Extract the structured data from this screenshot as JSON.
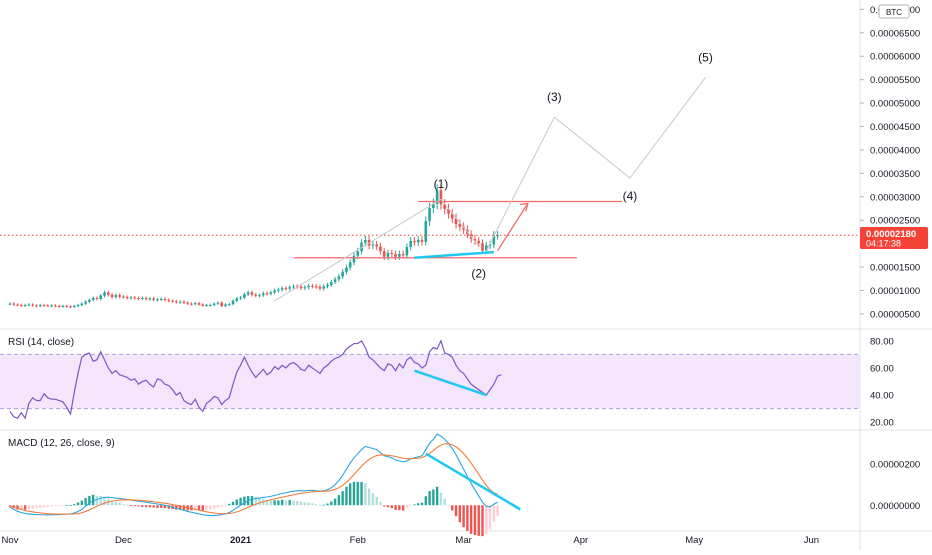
{
  "colors": {
    "up": "#26a69a",
    "down": "#ef5350",
    "rsi_line": "#7e57c2",
    "rsi_band": "#f3e5fb",
    "macd_line": "#2aa6e0",
    "signal_line": "#f57c3a",
    "divergence": "#1ec8f0",
    "price_tag": "#f44336",
    "resistance": "#f06a6a",
    "wave": "#c8c8c8"
  },
  "chart_data": [
    {
      "type": "candlestick",
      "name": "main",
      "currency_badge": "BTC",
      "y_ticks": [
        "0.00007000",
        "0.00006500",
        "0.00006000",
        "0.00005500",
        "0.00005000",
        "0.00004500",
        "0.00004000",
        "0.00003500",
        "0.00003000",
        "0.00002500",
        "0.00002000",
        "0.00001500",
        "0.00001000",
        "0.00000500"
      ],
      "y_tick_values": [
        70,
        65,
        60,
        55,
        50,
        45,
        40,
        35,
        30,
        25,
        20,
        15,
        10,
        5
      ],
      "ylim": [
        2,
        72
      ],
      "unit_scale": "1e-6",
      "last_price": "0.00002180",
      "last_price_value": 21.8,
      "countdown": "04:17:38",
      "x_ticks": [
        "Nov",
        "Dec",
        "2021",
        "Feb",
        "Mar",
        "Apr",
        "May",
        "Jun"
      ],
      "x_tick_days": [
        0,
        30,
        61,
        92,
        120,
        151,
        181,
        212
      ],
      "close": [
        7.2,
        7.0,
        6.9,
        6.8,
        6.9,
        7.0,
        6.8,
        6.7,
        6.9,
        6.8,
        6.7,
        6.8,
        6.7,
        6.6,
        6.7,
        6.6,
        6.5,
        6.7,
        6.9,
        7.2,
        7.6,
        8.0,
        8.4,
        8.2,
        8.9,
        9.6,
        9.1,
        8.6,
        9.0,
        8.7,
        8.6,
        8.4,
        8.5,
        8.4,
        8.3,
        8.4,
        8.2,
        8.3,
        8.0,
        8.1,
        8.2,
        8.0,
        7.8,
        7.7,
        7.5,
        7.6,
        7.4,
        7.2,
        7.1,
        7.3,
        7.0,
        6.8,
        6.9,
        6.9,
        7.2,
        7.4,
        6.7,
        7.0,
        7.1,
        7.8,
        8.3,
        8.5,
        9.2,
        9.6,
        9.1,
        8.9,
        9.0,
        9.4,
        9.3,
        9.6,
        10.0,
        10.2,
        10.5,
        10.4,
        10.7,
        10.9,
        10.8,
        10.5,
        10.7,
        11.0,
        10.9,
        10.8,
        10.4,
        10.9,
        11.2,
        11.8,
        12.4,
        13.0,
        14.0,
        14.9,
        16.0,
        17.4,
        18.4,
        20.2,
        20.8,
        19.6,
        19.8,
        19.4,
        18.4,
        17.2,
        18.0,
        17.8,
        17.2,
        17.8,
        17.5,
        19.3,
        20.6,
        20.3,
        20.8,
        20.4,
        24.8,
        27.6,
        28.5,
        31.4,
        28.4,
        27.4,
        26.4,
        25.4,
        24.2,
        23.6,
        23.0,
        22.0,
        21.0,
        20.6,
        20.1,
        18.5,
        19.6,
        19.8,
        21.8,
        21.8
      ],
      "annotations": {
        "wave_labels": [
          "(1)",
          "(2)",
          "(3)",
          "(4)",
          "(5)"
        ],
        "wave_points": [
          [
            114,
            28.5
          ],
          [
            124,
            17.0
          ],
          [
            144,
            47.0
          ],
          [
            164,
            34.0
          ],
          [
            184,
            55.5
          ]
        ],
        "resistance_upper": 29.0,
        "support_lower": 17.0
      }
    },
    {
      "type": "line",
      "name": "rsi",
      "title": "RSI (14, close)",
      "y_ticks": [
        "80.00",
        "60.00",
        "40.00",
        "20.00"
      ],
      "y_tick_values": [
        80,
        60,
        40,
        20
      ],
      "ylim": [
        15,
        88
      ],
      "band": [
        30,
        70
      ],
      "values": [
        28,
        24,
        23,
        27,
        23,
        34,
        38,
        36,
        36,
        41,
        38,
        37,
        37,
        36,
        35,
        31,
        26,
        42,
        56,
        68,
        70,
        71,
        65,
        66,
        72,
        66,
        60,
        56,
        58,
        55,
        54,
        53,
        51,
        52,
        48,
        50,
        51,
        48,
        46,
        52,
        51,
        48,
        47,
        44,
        40,
        42,
        36,
        34,
        33,
        37,
        31,
        28,
        34,
        36,
        39,
        38,
        33,
        36,
        38,
        48,
        57,
        62,
        68,
        62,
        57,
        53,
        56,
        59,
        55,
        57,
        61,
        59,
        62,
        60,
        63,
        64,
        62,
        59,
        58,
        62,
        60,
        58,
        56,
        60,
        62,
        65,
        67,
        68,
        70,
        74,
        76,
        78,
        78,
        80,
        75,
        68,
        66,
        63,
        60,
        58,
        63,
        62,
        58,
        63,
        60,
        66,
        68,
        64,
        63,
        60,
        62,
        72,
        75,
        74,
        80,
        71,
        70,
        68,
        62,
        58,
        56,
        52,
        48,
        46,
        44,
        42,
        40,
        44,
        48,
        54,
        55
      ]
    },
    {
      "type": "line",
      "name": "macd",
      "title": "MACD (12, 26, close, 9)",
      "y_ticks": [
        "0.00000200",
        "0.00000000"
      ],
      "y_tick_values": [
        2.0,
        0.0
      ],
      "ylim": [
        -1.2,
        3.6
      ],
      "macd": [
        -0.1,
        -0.2,
        -0.3,
        -0.35,
        -0.4,
        -0.42,
        -0.44,
        -0.45,
        -0.46,
        -0.46,
        -0.47,
        -0.46,
        -0.46,
        -0.45,
        -0.44,
        -0.43,
        -0.42,
        -0.38,
        -0.3,
        -0.2,
        -0.05,
        0.1,
        0.22,
        0.28,
        0.35,
        0.38,
        0.39,
        0.37,
        0.35,
        0.33,
        0.3,
        0.28,
        0.25,
        0.22,
        0.2,
        0.17,
        0.15,
        0.12,
        0.09,
        0.06,
        0.03,
        0.0,
        -0.05,
        -0.1,
        -0.15,
        -0.2,
        -0.25,
        -0.3,
        -0.34,
        -0.38,
        -0.42,
        -0.46,
        -0.48,
        -0.5,
        -0.5,
        -0.48,
        -0.45,
        -0.42,
        -0.35,
        -0.25,
        -0.12,
        0.0,
        0.12,
        0.22,
        0.3,
        0.33,
        0.35,
        0.38,
        0.4,
        0.43,
        0.48,
        0.52,
        0.58,
        0.6,
        0.65,
        0.68,
        0.7,
        0.7,
        0.7,
        0.72,
        0.72,
        0.7,
        0.68,
        0.7,
        0.75,
        0.85,
        1.0,
        1.2,
        1.45,
        1.75,
        2.05,
        2.3,
        2.5,
        2.7,
        2.85,
        2.8,
        2.75,
        2.7,
        2.55,
        2.4,
        2.35,
        2.3,
        2.2,
        2.15,
        2.1,
        2.15,
        2.25,
        2.3,
        2.35,
        2.4,
        2.7,
        3.0,
        3.2,
        3.45,
        3.35,
        3.2,
        3.0,
        2.75,
        2.45,
        2.1,
        1.75,
        1.4,
        1.05,
        0.75,
        0.45,
        0.15,
        -0.05,
        -0.08,
        0.05,
        0.15
      ],
      "signal": [
        -0.05,
        -0.1,
        -0.15,
        -0.2,
        -0.25,
        -0.29,
        -0.32,
        -0.35,
        -0.37,
        -0.39,
        -0.41,
        -0.42,
        -0.43,
        -0.43,
        -0.43,
        -0.43,
        -0.43,
        -0.42,
        -0.4,
        -0.36,
        -0.3,
        -0.22,
        -0.14,
        -0.05,
        0.03,
        0.1,
        0.16,
        0.2,
        0.23,
        0.25,
        0.26,
        0.26,
        0.26,
        0.25,
        0.24,
        0.23,
        0.21,
        0.19,
        0.17,
        0.15,
        0.12,
        0.1,
        0.07,
        0.03,
        0.0,
        -0.04,
        -0.08,
        -0.12,
        -0.16,
        -0.2,
        -0.24,
        -0.28,
        -0.32,
        -0.35,
        -0.38,
        -0.4,
        -0.41,
        -0.41,
        -0.4,
        -0.37,
        -0.32,
        -0.26,
        -0.18,
        -0.1,
        -0.02,
        0.05,
        0.11,
        0.17,
        0.22,
        0.26,
        0.31,
        0.35,
        0.39,
        0.43,
        0.47,
        0.51,
        0.55,
        0.58,
        0.6,
        0.63,
        0.65,
        0.66,
        0.67,
        0.68,
        0.69,
        0.72,
        0.77,
        0.85,
        0.96,
        1.11,
        1.29,
        1.49,
        1.69,
        1.89,
        2.08,
        2.22,
        2.33,
        2.41,
        2.44,
        2.44,
        2.42,
        2.4,
        2.36,
        2.32,
        2.28,
        2.26,
        2.26,
        2.27,
        2.28,
        2.31,
        2.39,
        2.51,
        2.65,
        2.81,
        2.92,
        2.98,
        2.98,
        2.93,
        2.83,
        2.69,
        2.51,
        2.29,
        2.04,
        1.78,
        1.51,
        1.22,
        0.96,
        0.75,
        0.61,
        0.52
      ]
    }
  ]
}
